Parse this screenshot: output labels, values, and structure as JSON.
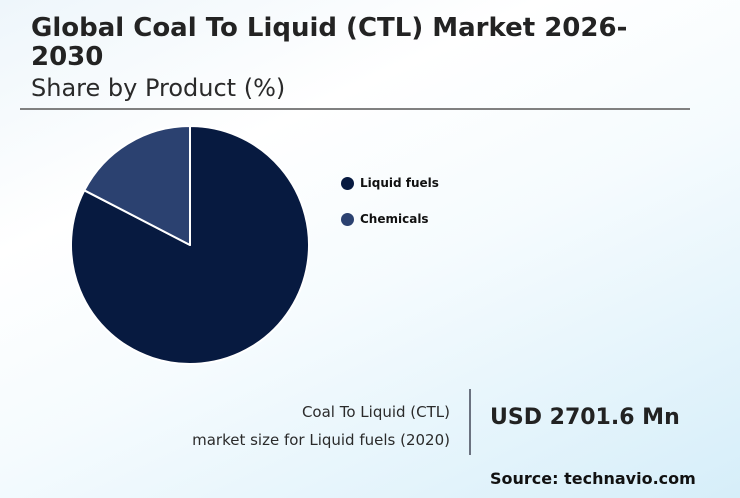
{
  "header": {
    "title": "Global Coal To Liquid (CTL) Market 2026-2030",
    "subtitle": "Share by Product (%)"
  },
  "legend": [
    {
      "label": "Liquid fuels",
      "color": "#071a40"
    },
    {
      "label": "Chemicals",
      "color": "#2b4170"
    }
  ],
  "stat": {
    "label_line1": "Coal To Liquid (CTL)",
    "label_line2": "market size for Liquid fuels (2020)",
    "value": "USD 2701.6 Mn"
  },
  "footer": {
    "source": "Source: technavio.com"
  },
  "chart_data": {
    "type": "pie",
    "title": "Global Coal To Liquid (CTL) Market 2026-2030",
    "subtitle": "Share by Product (%)",
    "categories": [
      "Liquid fuels",
      "Chemicals"
    ],
    "values": [
      82.6,
      17.4
    ],
    "colors": [
      "#071a40",
      "#2b4170"
    ],
    "legend_position": "right",
    "start_angle": "12 o'clock, clockwise"
  }
}
